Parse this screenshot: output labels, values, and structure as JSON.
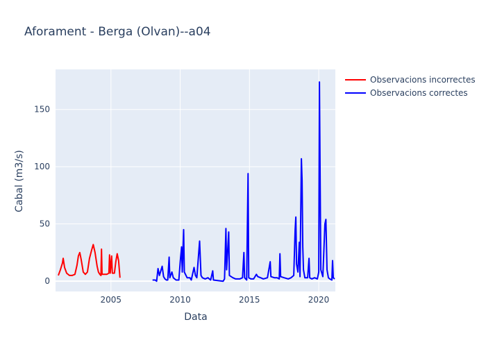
{
  "chart_data": {
    "type": "line",
    "title": "Aforament - Berga (Olvan)--a04",
    "xlabel": "Data",
    "ylabel": "Cabal (m3/s)",
    "x_range": [
      2001.0,
      2021.2
    ],
    "y_range": [
      -9,
      185
    ],
    "x_ticks": [
      2005,
      2010,
      2015,
      2020
    ],
    "x_tick_labels": [
      "2005",
      "2010",
      "2015",
      "2020"
    ],
    "y_ticks": [
      0,
      50,
      100,
      150
    ],
    "y_tick_labels": [
      "0",
      "50",
      "100",
      "150"
    ],
    "grid": true,
    "legend_position": "top-right outside",
    "series": [
      {
        "name": "Observacions incorrectes",
        "color": "#ff0000",
        "points": [
          [
            2001.2,
            5
          ],
          [
            2001.35,
            10
          ],
          [
            2001.5,
            16
          ],
          [
            2001.55,
            20
          ],
          [
            2001.65,
            12
          ],
          [
            2001.8,
            7
          ],
          [
            2002.0,
            5
          ],
          [
            2002.2,
            5
          ],
          [
            2002.4,
            6
          ],
          [
            2002.55,
            14
          ],
          [
            2002.65,
            22
          ],
          [
            2002.75,
            25
          ],
          [
            2002.85,
            19
          ],
          [
            2003.0,
            8
          ],
          [
            2003.15,
            6
          ],
          [
            2003.3,
            8
          ],
          [
            2003.45,
            20
          ],
          [
            2003.6,
            27
          ],
          [
            2003.72,
            32
          ],
          [
            2003.85,
            25
          ],
          [
            2004.0,
            13
          ],
          [
            2004.1,
            8
          ],
          [
            2004.2,
            6
          ],
          [
            2004.28,
            5
          ],
          [
            2004.32,
            28
          ],
          [
            2004.36,
            6
          ],
          [
            2004.5,
            6
          ],
          [
            2004.7,
            6
          ],
          [
            2004.85,
            7
          ],
          [
            2004.9,
            23
          ],
          [
            2004.95,
            7
          ],
          [
            2005.05,
            22
          ],
          [
            2005.1,
            7
          ],
          [
            2005.25,
            7
          ],
          [
            2005.35,
            17
          ],
          [
            2005.45,
            24
          ],
          [
            2005.55,
            18
          ],
          [
            2005.65,
            3
          ]
        ]
      },
      {
        "name": "Observacions correctes",
        "color": "#0000ff",
        "points": [
          [
            2008.0,
            1
          ],
          [
            2008.2,
            1
          ],
          [
            2008.3,
            0
          ],
          [
            2008.4,
            11
          ],
          [
            2008.5,
            5
          ],
          [
            2008.6,
            9
          ],
          [
            2008.7,
            13
          ],
          [
            2008.8,
            4
          ],
          [
            2008.9,
            2
          ],
          [
            2009.0,
            1
          ],
          [
            2009.1,
            1
          ],
          [
            2009.2,
            21
          ],
          [
            2009.25,
            3
          ],
          [
            2009.4,
            8
          ],
          [
            2009.5,
            3
          ],
          [
            2009.7,
            1
          ],
          [
            2009.9,
            1
          ],
          [
            2010.0,
            17
          ],
          [
            2010.1,
            30
          ],
          [
            2010.15,
            8
          ],
          [
            2010.25,
            45
          ],
          [
            2010.3,
            8
          ],
          [
            2010.5,
            3
          ],
          [
            2010.7,
            3
          ],
          [
            2010.8,
            1
          ],
          [
            2011.0,
            12
          ],
          [
            2011.1,
            5
          ],
          [
            2011.2,
            3
          ],
          [
            2011.4,
            35
          ],
          [
            2011.45,
            20
          ],
          [
            2011.5,
            5
          ],
          [
            2011.6,
            3
          ],
          [
            2011.8,
            2
          ],
          [
            2012.0,
            3
          ],
          [
            2012.2,
            1
          ],
          [
            2012.35,
            9
          ],
          [
            2012.4,
            1
          ],
          [
            2013.1,
            0
          ],
          [
            2013.2,
            2
          ],
          [
            2013.3,
            46
          ],
          [
            2013.35,
            10
          ],
          [
            2013.5,
            43
          ],
          [
            2013.55,
            5
          ],
          [
            2013.8,
            3
          ],
          [
            2014.0,
            2
          ],
          [
            2014.3,
            2
          ],
          [
            2014.5,
            3
          ],
          [
            2014.6,
            25
          ],
          [
            2014.65,
            3
          ],
          [
            2014.8,
            1
          ],
          [
            2014.9,
            94
          ],
          [
            2014.95,
            3
          ],
          [
            2015.1,
            2
          ],
          [
            2015.3,
            2
          ],
          [
            2015.5,
            6
          ],
          [
            2015.6,
            4
          ],
          [
            2015.8,
            3
          ],
          [
            2016.0,
            2
          ],
          [
            2016.3,
            3
          ],
          [
            2016.5,
            17
          ],
          [
            2016.55,
            4
          ],
          [
            2016.8,
            3
          ],
          [
            2017.0,
            3
          ],
          [
            2017.15,
            2
          ],
          [
            2017.2,
            24
          ],
          [
            2017.25,
            4
          ],
          [
            2017.5,
            3
          ],
          [
            2017.8,
            2
          ],
          [
            2018.0,
            3
          ],
          [
            2018.2,
            5
          ],
          [
            2018.3,
            45
          ],
          [
            2018.35,
            56
          ],
          [
            2018.4,
            15
          ],
          [
            2018.5,
            8
          ],
          [
            2018.6,
            34
          ],
          [
            2018.65,
            4
          ],
          [
            2018.75,
            107
          ],
          [
            2018.8,
            88
          ],
          [
            2018.85,
            30
          ],
          [
            2018.9,
            10
          ],
          [
            2019.0,
            3
          ],
          [
            2019.2,
            3
          ],
          [
            2019.3,
            20
          ],
          [
            2019.35,
            3
          ],
          [
            2019.5,
            2
          ],
          [
            2019.7,
            3
          ],
          [
            2019.9,
            2
          ],
          [
            2020.0,
            8
          ],
          [
            2020.05,
            174
          ],
          [
            2020.1,
            90
          ],
          [
            2020.15,
            10
          ],
          [
            2020.3,
            4
          ],
          [
            2020.45,
            50
          ],
          [
            2020.52,
            54
          ],
          [
            2020.6,
            10
          ],
          [
            2020.7,
            3
          ],
          [
            2020.8,
            2
          ],
          [
            2020.95,
            1
          ],
          [
            2021.0,
            18
          ],
          [
            2021.05,
            3
          ],
          [
            2021.15,
            2
          ]
        ]
      }
    ]
  }
}
